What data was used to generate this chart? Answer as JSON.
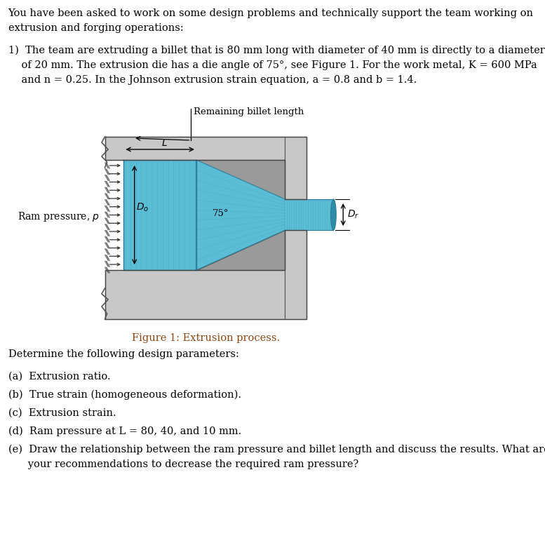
{
  "bg_color": "#ffffff",
  "die_color": "#c8c8c8",
  "die_dark": "#9a9a9a",
  "billet_color": "#5bbcd6",
  "text_color": "#000000",
  "figure_caption_color": "#8B4513",
  "font_size": 10.5,
  "fig_caption": "Figure 1: Extrusion process.",
  "line1": "You have been asked to work on some design problems and technically support the team working on",
  "line2": "extrusion and forging operations:",
  "line3a": "1)  The team are extruding a billet that is 80 mm long with diameter of 40 mm is directly to a diameter",
  "line3b": "    of 20 mm. The extrusion die has a die angle of 75°, see Figure 1. For the work metal, K = 600 MPa",
  "line3c": "    and n = 0.25. In the Johnson extrusion strain equation, a = 0.8 and b = 1.4.",
  "det_line": "Determine the following design parameters:",
  "item_a": "(a)  Extrusion ratio.",
  "item_b": "(b)  True strain (homogeneous deformation).",
  "item_c": "(c)  Extrusion strain.",
  "item_d": "(d)  Ram pressure at L = 80, 40, and 10 mm.",
  "item_e1": "(e)  Draw the relationship between the ram pressure and billet length and discuss the results. What are",
  "item_e2": "      your recommendations to decrease the required ram pressure?"
}
